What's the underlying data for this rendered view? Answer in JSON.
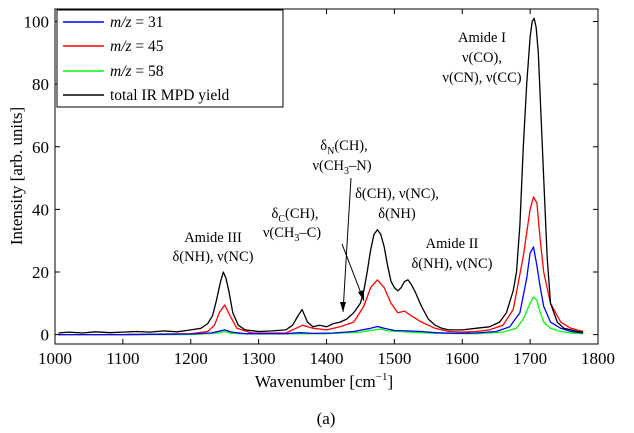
{
  "chart_data": {
    "type": "line",
    "xlabel": "Wavenumber [cm",
    "xlabel_sup": "−1",
    "xlabel_end": "]",
    "ylabel": "Intensity [arb. units]",
    "xlim": [
      1000,
      1800
    ],
    "ylim": [
      -3,
      104
    ],
    "xticks": [
      1000,
      1100,
      1200,
      1300,
      1400,
      1500,
      1600,
      1700,
      1800
    ],
    "yticks": [
      0,
      20,
      40,
      60,
      80,
      100
    ],
    "grid": false,
    "legend_position": "top-left",
    "caption": "(a)",
    "series": [
      {
        "name": "m/z = 31",
        "legend_italic": "m/z",
        "legend_rest": " = 31",
        "color": "#0000ff",
        "x": [
          1005,
          1100,
          1200,
          1230,
          1240,
          1250,
          1260,
          1280,
          1340,
          1360,
          1380,
          1410,
          1440,
          1465,
          1475,
          1485,
          1500,
          1520,
          1540,
          1560,
          1590,
          1620,
          1650,
          1670,
          1685,
          1695,
          1700,
          1705,
          1710,
          1715,
          1720,
          1730,
          1745,
          1760,
          1778
        ],
        "y": [
          0,
          0,
          0.2,
          0.5,
          1,
          1.5,
          0.8,
          0.3,
          0.3,
          0.6,
          0.4,
          0.5,
          1,
          2,
          2.6,
          2,
          1.3,
          1.2,
          1,
          0.6,
          0.4,
          0.5,
          1,
          2.5,
          7,
          18,
          26,
          28,
          22,
          15,
          9,
          4,
          2,
          1,
          0.5
        ]
      },
      {
        "name": "m/z = 45",
        "legend_italic": "m/z",
        "legend_rest": " = 45",
        "color": "#ff0000",
        "x": [
          1005,
          1100,
          1200,
          1225,
          1235,
          1242,
          1250,
          1258,
          1268,
          1290,
          1340,
          1355,
          1365,
          1380,
          1400,
          1420,
          1440,
          1455,
          1465,
          1475,
          1485,
          1495,
          1505,
          1515,
          1525,
          1540,
          1560,
          1580,
          1600,
          1620,
          1640,
          1660,
          1675,
          1690,
          1700,
          1705,
          1710,
          1715,
          1720,
          1730,
          1745,
          1760,
          1778
        ],
        "y": [
          0,
          0,
          0.3,
          1,
          3,
          7,
          9.5,
          6,
          2,
          0.5,
          0.5,
          2,
          3,
          2,
          1.5,
          2.5,
          4,
          9,
          15,
          17.5,
          15,
          10,
          7,
          7.5,
          6,
          4,
          2,
          1,
          0.8,
          1,
          1.5,
          3,
          8,
          25,
          40,
          44,
          42,
          30,
          20,
          10,
          4,
          2,
          1
        ]
      },
      {
        "name": "m/z = 58",
        "legend_italic": "m/z",
        "legend_rest": " = 58",
        "color": "#00ff00",
        "x": [
          1005,
          1100,
          1200,
          1240,
          1250,
          1260,
          1300,
          1360,
          1400,
          1450,
          1470,
          1480,
          1490,
          1520,
          1560,
          1620,
          1660,
          1680,
          1690,
          1700,
          1705,
          1710,
          1715,
          1720,
          1730,
          1745,
          1760,
          1778
        ],
        "y": [
          0,
          0,
          0,
          0.5,
          1,
          0.4,
          0.2,
          0.3,
          0.3,
          0.8,
          1.5,
          1.8,
          1.2,
          0.8,
          0.4,
          0.3,
          0.8,
          2,
          5,
          10,
          12,
          11,
          7,
          4,
          2,
          1,
          0.5,
          0.3
        ]
      },
      {
        "name": "total IR MPD yield",
        "color": "#000000",
        "x": [
          1005,
          1020,
          1040,
          1060,
          1080,
          1100,
          1120,
          1140,
          1160,
          1180,
          1200,
          1215,
          1225,
          1232,
          1238,
          1244,
          1248,
          1252,
          1256,
          1262,
          1270,
          1280,
          1300,
          1320,
          1340,
          1350,
          1358,
          1364,
          1368,
          1372,
          1380,
          1390,
          1400,
          1410,
          1420,
          1430,
          1440,
          1450,
          1455,
          1460,
          1465,
          1470,
          1475,
          1480,
          1485,
          1490,
          1495,
          1500,
          1505,
          1510,
          1515,
          1520,
          1525,
          1530,
          1540,
          1550,
          1560,
          1570,
          1580,
          1600,
          1620,
          1640,
          1655,
          1665,
          1675,
          1680,
          1685,
          1690,
          1695,
          1700,
          1703,
          1706,
          1709,
          1712,
          1716,
          1720,
          1725,
          1730,
          1740,
          1750,
          1760,
          1770,
          1778
        ],
        "y": [
          0.5,
          0.8,
          0.5,
          0.9,
          0.6,
          0.8,
          1,
          0.8,
          1.2,
          0.9,
          1.5,
          2,
          3.5,
          6,
          11,
          17,
          20,
          18,
          14,
          7,
          3,
          1.5,
          1,
          1.2,
          1.5,
          3,
          6,
          8,
          6,
          4,
          2.5,
          3,
          2.5,
          3.5,
          4,
          5,
          7,
          10,
          14,
          20,
          27,
          32,
          33.5,
          32,
          28,
          22,
          17,
          15,
          14,
          15,
          17,
          17.5,
          16,
          14,
          9,
          5,
          3,
          2,
          1.5,
          1.5,
          2,
          2.5,
          4,
          7,
          14,
          20,
          35,
          60,
          80,
          95,
          100,
          101,
          98,
          90,
          70,
          50,
          25,
          10,
          4,
          2,
          1.5,
          1,
          0.8
        ]
      }
    ],
    "annotations": [
      {
        "lines": [
          "Amide I",
          "ν(CO),",
          "ν(CN), ν(CC)"
        ]
      },
      {
        "lines": [
          "Amide III",
          "δ(NH), ν(NC)"
        ]
      },
      {
        "lines": [
          "Amide II",
          "δ(NH), ν(NC)"
        ]
      },
      {
        "lines": [
          "δ(CH), ν(NC),",
          "δ(NH)"
        ]
      },
      {
        "line1_pre": "δ",
        "line1_sub": "C",
        "line1_post": "(CH),",
        "line2_pre": "ν(CH",
        "line2_sub": "3",
        "line2_post": "–C)"
      },
      {
        "line1_pre": "δ",
        "line1_sub": "N",
        "line1_post": "(CH),",
        "line2_pre": "ν(CH",
        "line2_sub": "3",
        "line2_post": "–N)"
      }
    ]
  }
}
